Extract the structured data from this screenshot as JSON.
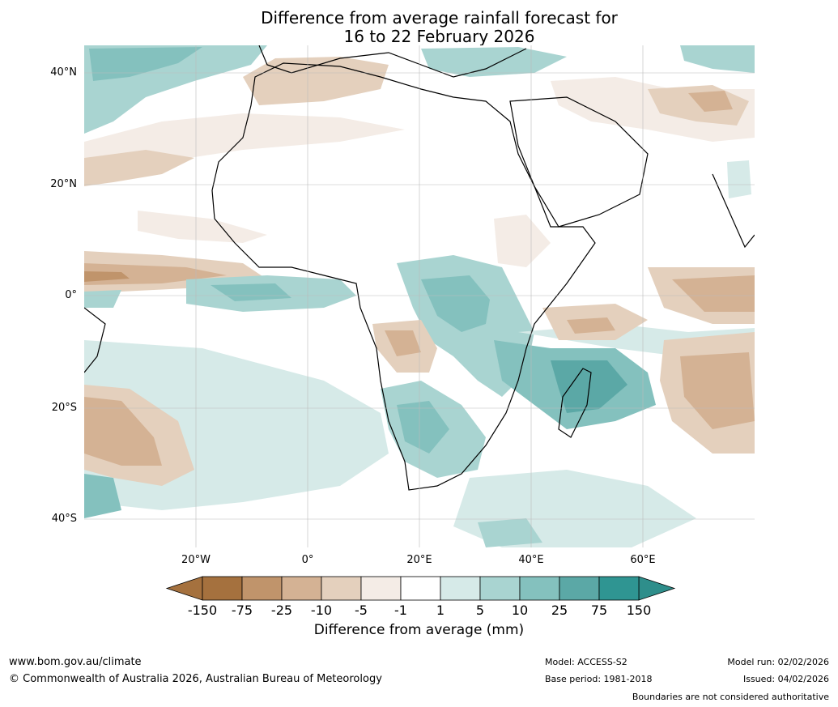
{
  "title": {
    "line1": "Difference from average rainfall forecast for",
    "line2": "16 to 22 February 2026"
  },
  "axes": {
    "lat_labels": [
      "40°N",
      "20°N",
      "0°",
      "20°S",
      "40°S"
    ],
    "lon_labels": [
      "20°W",
      "0°",
      "20°E",
      "40°E",
      "60°E"
    ]
  },
  "colorbar": {
    "ticks": [
      "-150",
      "-75",
      "-25",
      "-10",
      "-5",
      "-1",
      "1",
      "5",
      "10",
      "25",
      "75",
      "150"
    ],
    "colors": [
      "#a5713e",
      "#c0946b",
      "#d4b294",
      "#e4d0bd",
      "#f4ece6",
      "#ffffff",
      "#d6eae8",
      "#a9d4d1",
      "#84c1be",
      "#5ba8a6",
      "#2f9592"
    ],
    "extend_low_color": "#a5713e",
    "extend_high_color": "#2e8e8b",
    "label": "Difference from average (mm)"
  },
  "footer": {
    "website": "www.bom.gov.au/climate",
    "copyright": "© Commonwealth of Australia 2026, Australian Bureau of Meteorology",
    "model": "Model: ACCESS-S2",
    "base_period": "Base period: 1981-2018",
    "model_run": "Model run: 02/02/2026",
    "issued": "Issued: 04/02/2026",
    "disclaimer": "Boundaries are not considered authoritative"
  }
}
